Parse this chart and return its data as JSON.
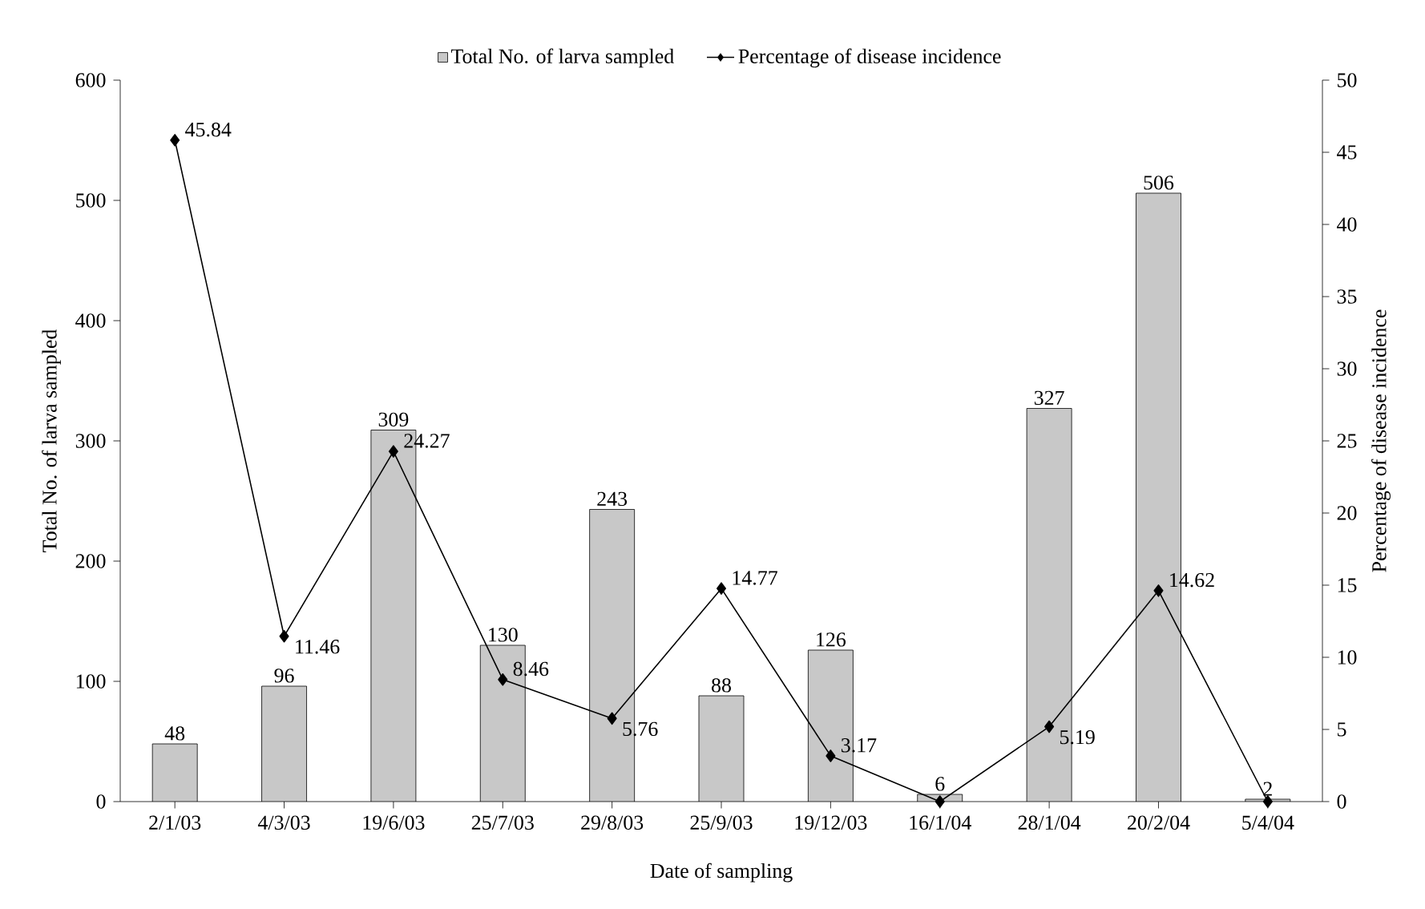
{
  "chart_data": {
    "type": "bar",
    "xlabel": "Date of sampling",
    "ylabel": "Total No. of larva sampled",
    "y2label": "Percentage of disease incidence",
    "categories": [
      "2/1/03",
      "4/3/03",
      "19/6/03",
      "25/7/03",
      "29/8/03",
      "25/9/03",
      "19/12/03",
      "16/1/04",
      "28/1/04",
      "20/2/04",
      "5/4/04"
    ],
    "series": [
      {
        "name": "Total No. of larva sampled",
        "color": "#c8c8c8",
        "values": [
          48,
          96,
          309,
          130,
          243,
          88,
          126,
          6,
          327,
          506,
          2
        ],
        "value_labels": [
          "48",
          "96",
          "309",
          "130",
          "243",
          "88",
          "126",
          "6",
          "327",
          "506",
          "2"
        ]
      },
      {
        "name": "Percentage of disease incidence",
        "type": "line",
        "axis": "y2",
        "color": "#000000",
        "marker": "diamond",
        "line_style": "solid",
        "values": [
          45.84,
          11.46,
          24.27,
          8.46,
          5.76,
          14.77,
          3.17,
          0,
          5.19,
          14.62,
          0
        ],
        "value_labels": [
          "45.84",
          "11.46",
          "24.27",
          "8.46",
          "5.76",
          "14.77",
          "3.17",
          null,
          "5.19",
          "14.62",
          null
        ]
      }
    ],
    "ylim": [
      0,
      600
    ],
    "yticks": [
      0,
      100,
      200,
      300,
      400,
      500,
      600
    ],
    "y2lim": [
      0,
      50
    ],
    "y2ticks": [
      0,
      5,
      10,
      15,
      20,
      25,
      30,
      35,
      40,
      45,
      50
    ],
    "legend": "top",
    "grid": false
  }
}
